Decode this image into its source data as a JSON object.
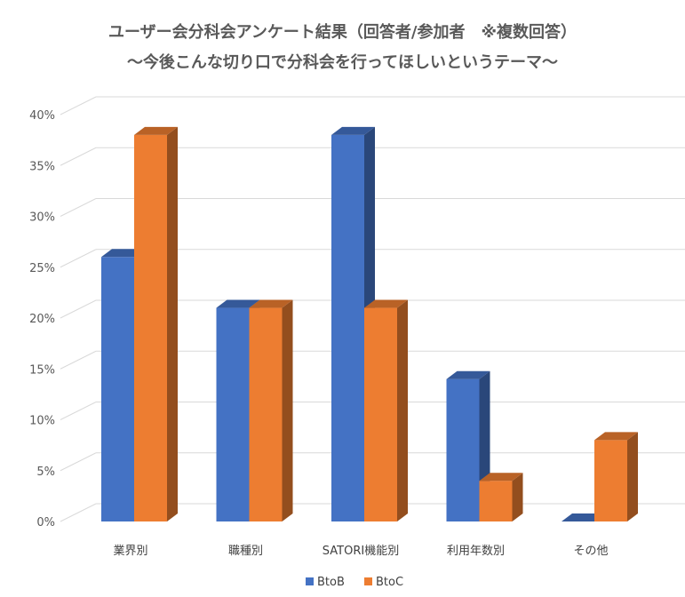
{
  "chart_data": {
    "type": "bar",
    "title": "ユーザー会分科会アンケート結果（回答者/参加者　※複数回答）",
    "subtitle": "～今後こんな切り口で分科会を行ってほしいというテーマ～",
    "categories": [
      "業界別",
      "職種別",
      "SATORI機能別",
      "利用年数別",
      "その他"
    ],
    "series": [
      {
        "name": "BtoB",
        "values": [
          0.26,
          0.21,
          0.38,
          0.14,
          0.0
        ],
        "color": "#4472c4"
      },
      {
        "name": "BtoC",
        "values": [
          0.38,
          0.21,
          0.21,
          0.04,
          0.08
        ],
        "color": "#ed7d31"
      }
    ],
    "yticks": [
      "0%",
      "5%",
      "10%",
      "15%",
      "20%",
      "25%",
      "30%",
      "35%",
      "40%"
    ],
    "ylim": [
      0,
      0.4
    ],
    "grid": true,
    "legend": "bottom",
    "style": "3d-clustered-column"
  }
}
